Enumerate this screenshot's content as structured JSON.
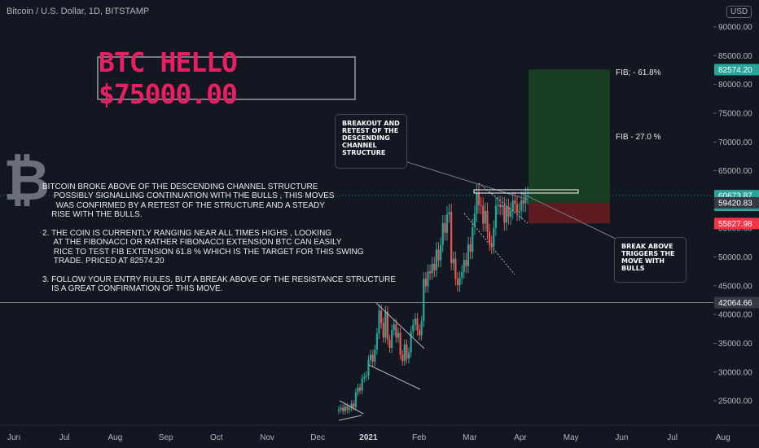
{
  "header": {
    "symbol": "Bitcoin / U.S. Dollar, 1D, BITSTAMP",
    "currency": "USD"
  },
  "headline": "BTC HELLO $75000.00",
  "analysis_text": "BITCOIN BROKE ABOVE OF THE DESCENDING CHANNEL STRUCTURE\n     POSSIBLY SIGNALLING CONTINUATION WITH THE BULLS , THIS MOVES\n      WAS CONFIRMED BY A RETEST OF THE STRUCTURE AND A STEADY\n    RISE WITH THE BULLS.\n\n2. THE COIN IS CURRENTLY RANGING NEAR ALL TIMES HIGHS , LOOKING\n     AT THE FIBONACCI OR RATHER FIBONACCI EXTENSION BTC CAN EASILY\n     RICE TO TEST FIB EXTENSION 61.8 % WHICH IS THE TARGET FOR THIS SWING\n     TRADE. PRICED AT 82574.20\n\n3. FOLLOW YOUR ENTRY RULES, BUT A BREAK ABOVE OF THE RESISTANCE STRUCTURE\n    IS A GREAT CONFIRMATION OF THIS MOVE.",
  "callouts": {
    "breakout": "BREAKOUT AND\nRETEST OF THE\nDESCENDING\nCHANNEL\nSTRUCTURE",
    "break_above": "BREAK ABOVE\nTRIGGERS THE\nMOVE WITH\nBULLS"
  },
  "fib_labels": {
    "fib_618": "FIB; - 61.8%",
    "fib_27": "FIB - 27.0 %"
  },
  "colors": {
    "background": "#131722",
    "up": "#26a69a",
    "down": "#ef5350",
    "headline": "#e91e63",
    "target_zone": "#1b5e20",
    "stop_zone": "#7f1d1d"
  },
  "chart_data": {
    "type": "candlestick",
    "x_ticks": [
      "Jun",
      "Jul",
      "Aug",
      "Sep",
      "Oct",
      "Nov",
      "Dec",
      "2021",
      "Feb",
      "Mar",
      "Apr",
      "May",
      "Jun",
      "Jul",
      "Aug"
    ],
    "y_ticks": [
      25000,
      30000,
      35000,
      40000,
      45000,
      50000,
      55000,
      60000,
      65000,
      70000,
      75000,
      80000,
      85000,
      90000
    ],
    "y_tick_labels": [
      "25000.00",
      "30000.00",
      "35000.00",
      "40000.00",
      "45000.00",
      "50000.00",
      "55000.00",
      "60000.00",
      "65000.00",
      "70000.00",
      "75000.00",
      "80000.00",
      "85000.00",
      "90000.00"
    ],
    "ylim": [
      20000,
      93000
    ],
    "price_labels": [
      {
        "value": 82574.2,
        "text": "82574.20",
        "color": "#26a69a"
      },
      {
        "value": 60673.87,
        "text": "60673.87",
        "sub": "15:59:57",
        "color": "#26a69a"
      },
      {
        "value": 59420.83,
        "text": "59420.83",
        "color": "#363a45"
      },
      {
        "value": 55827.98,
        "text": "55827.98",
        "color": "#f23645"
      },
      {
        "value": 42064.66,
        "text": "42064.66",
        "color": "#363a45"
      }
    ],
    "horizontal_lines": [
      {
        "value": 42064.66,
        "style": "solid"
      },
      {
        "value": 60673.87,
        "style": "dotted"
      }
    ],
    "positions": {
      "entry": 59420.83,
      "target": 82574.2,
      "stop": 55827.98
    },
    "candles_close": [
      23500,
      23800,
      23200,
      24000,
      23400,
      23700,
      24500,
      23900,
      26500,
      27300,
      26800,
      28900,
      29200,
      29400,
      32100,
      33000,
      31800,
      33900,
      36700,
      40700,
      38500,
      36000,
      40500,
      35600,
      34200,
      37300,
      38300,
      36000,
      36800,
      33000,
      31900,
      34800,
      32300,
      33400,
      37000,
      38200,
      39300,
      37300,
      36400,
      38800,
      46200,
      44900,
      47500,
      47200,
      48800,
      47700,
      51300,
      49400,
      52100,
      55900,
      54200,
      57400,
      57800,
      48900,
      49700,
      46200,
      45100,
      46400,
      47400,
      49500,
      48400,
      52200,
      50900,
      55200,
      57500,
      61200,
      59000,
      58900,
      55800,
      58000,
      54400,
      52400,
      51800,
      55000,
      58900,
      59100,
      58700,
      59000,
      56000,
      58700,
      57000,
      58000,
      59800,
      59200,
      57700,
      58000,
      59900,
      59300,
      60600,
      60700
    ]
  }
}
